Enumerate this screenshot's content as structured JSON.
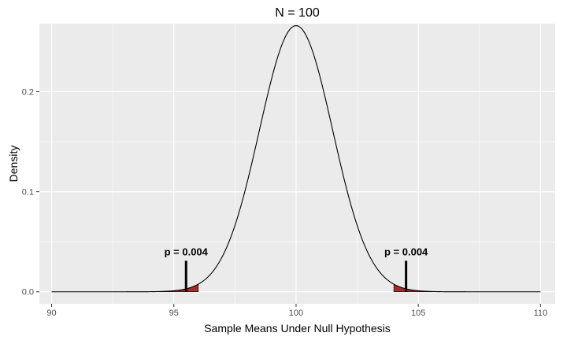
{
  "chart_data": {
    "type": "area",
    "title": "N = 100",
    "xlabel": "Sample Means Under Null Hypothesis",
    "ylabel": "Density",
    "xlim": [
      89.5,
      110.6
    ],
    "ylim": [
      -0.012,
      0.268
    ],
    "x_ticks": [
      90,
      95,
      100,
      105,
      110
    ],
    "x_tick_labels": [
      "90",
      "95",
      "100",
      "105",
      "110"
    ],
    "y_ticks": [
      0.0,
      0.1,
      0.2
    ],
    "y_tick_labels": [
      "0.0",
      "0.1",
      "0.2"
    ],
    "grid": true,
    "distribution": {
      "name": "normal",
      "mean": 100,
      "sd": 1.5,
      "x_range": [
        90,
        110
      ]
    },
    "shaded_tails": [
      {
        "side": "left",
        "x_range": [
          94,
          96
        ],
        "fill": "#a52a2a"
      },
      {
        "side": "right",
        "x_range": [
          104,
          106
        ],
        "fill": "#a52a2a"
      }
    ],
    "annotations": [
      {
        "x": 95.5,
        "segment_y": [
          0.0,
          0.031
        ],
        "label_y": 0.0365,
        "text": "p = 0.004"
      },
      {
        "x": 104.5,
        "segment_y": [
          0.0,
          0.031
        ],
        "label_y": 0.0365,
        "text": "p = 0.004"
      }
    ],
    "colors": {
      "panel": "#ebebeb",
      "grid_major": "#ffffff",
      "curve": "#000000",
      "tail_fill": "#a52a2a"
    }
  }
}
